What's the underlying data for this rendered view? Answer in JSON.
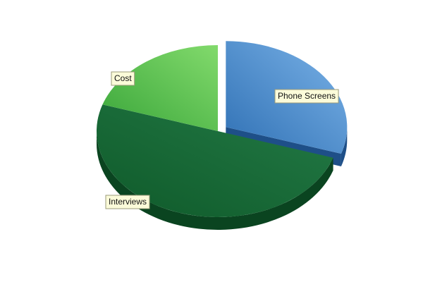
{
  "chart_data": {
    "type": "pie",
    "title": "",
    "legend": "none",
    "slices": [
      {
        "label": "Phone Screens",
        "value": 30,
        "exploded": true,
        "color_light": "#7bb3e8",
        "color_dark": "#2f70b4",
        "color_side": "#1e4f88"
      },
      {
        "label": "Interviews",
        "value": 50,
        "exploded": false,
        "color_light": "#237a46",
        "color_dark": "#0f5a2a",
        "color_side": "#0a4420"
      },
      {
        "label": "Cost",
        "value": 20,
        "exploded": false,
        "color_light": "#82da6c",
        "color_dark": "#3aa63a",
        "color_side": "#2a7f2a"
      }
    ]
  }
}
